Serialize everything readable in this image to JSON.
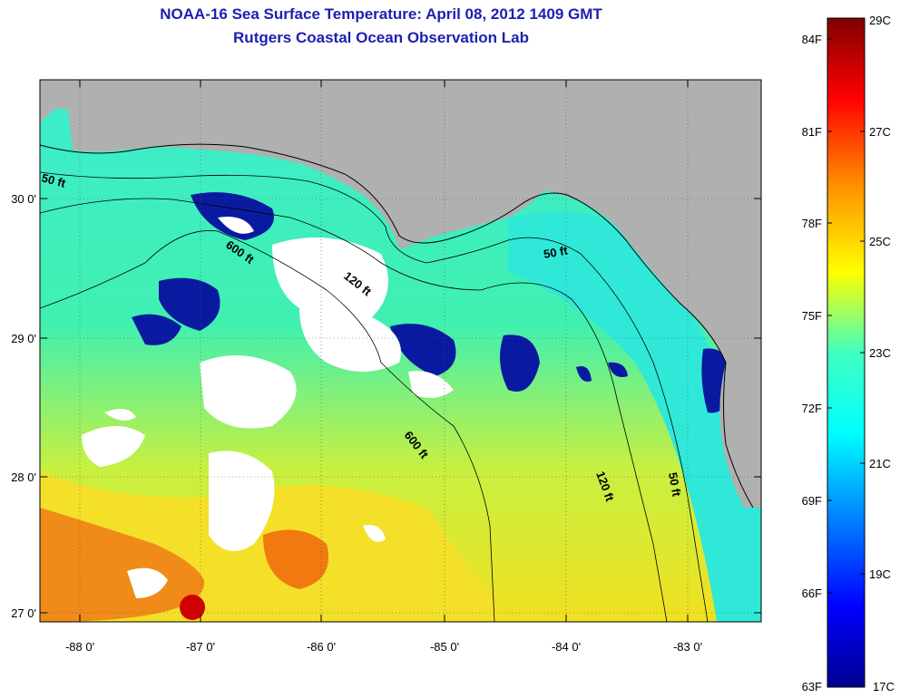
{
  "title": {
    "line1": "NOAA-16 Sea Surface Temperature:  April 08, 2012 1409 GMT",
    "line2": "Rutgers Coastal Ocean Observation Lab"
  },
  "axes": {
    "lon_ticks": [
      "-88 0'",
      "-87 0'",
      "-86 0'",
      "-85 0'",
      "-84 0'",
      "-83 0'"
    ],
    "lat_ticks": [
      "30 0'",
      "29 0'",
      "28 0'",
      "27 0'"
    ]
  },
  "contours": {
    "c50_west": "50 ft",
    "c600_a": "600 ft",
    "c120_a": "120 ft",
    "c50_east": "50 ft",
    "c600_b": "600 ft",
    "c120_b": "120 ft",
    "c50_se": "50 ft"
  },
  "colorbar": {
    "fahrenheit": [
      "84F",
      "81F",
      "78F",
      "75F",
      "72F",
      "69F",
      "66F",
      "63F"
    ],
    "celsius": [
      "29C",
      "27C",
      "25C",
      "23C",
      "21C",
      "19C",
      "17C"
    ]
  },
  "colors": {
    "title": "#1d1fb0",
    "land": "#b0b0b0",
    "cloud": "#ffffff",
    "sea_cool": "#00d8e0",
    "sea_mid": "#40f0c0",
    "sea_warm": "#e8ff20",
    "hot": "#ff6000"
  }
}
